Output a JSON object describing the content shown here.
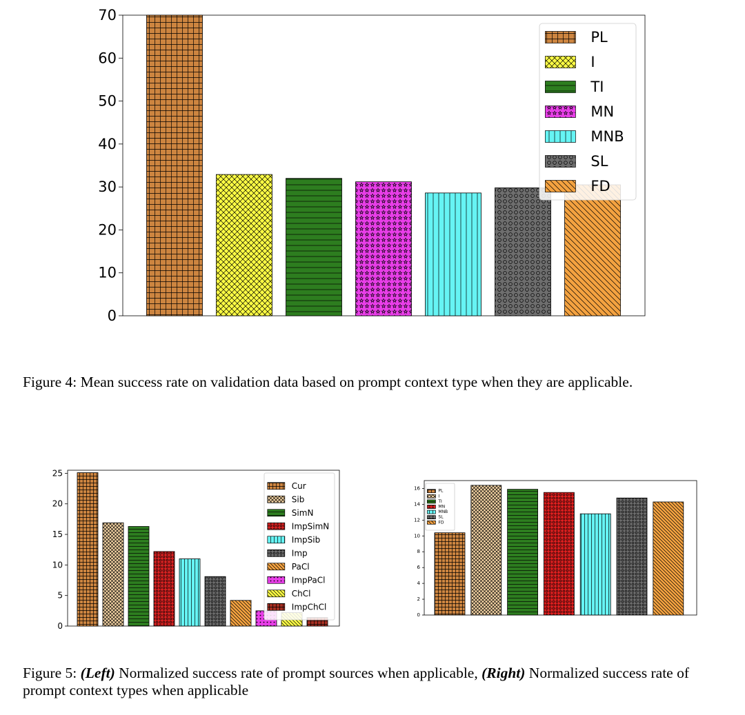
{
  "figure4": {
    "caption": "Figure 4: Mean success rate on validation data based on prompt context type when they are applicable."
  },
  "figure5": {
    "caption_prefix": "Figure 5: ",
    "caption_left_tag": "(Left)",
    "caption_middle": " Normalized success rate of prompt sources when applicable, ",
    "caption_right_tag": "(Right)",
    "caption_suffix": " Normalized success rate of prompt context types when applicable"
  },
  "chart_data": [
    {
      "type": "bar",
      "title": "",
      "xlabel": "",
      "ylabel": "",
      "categories": [
        "PL",
        "I",
        "TI",
        "MN",
        "MNB",
        "SL",
        "FD"
      ],
      "values": [
        70,
        32.9,
        32.0,
        31.2,
        28.6,
        29.8,
        30.5
      ],
      "colors": [
        "#cd8540",
        "#ffff44",
        "#2d7d1f",
        "#e83ee8",
        "#66f4f4",
        "#6e6e6e",
        "#f4a240"
      ],
      "patterns": [
        "grid",
        "crosshatch",
        "horizontal",
        "stars",
        "vertical",
        "circles",
        "diagonal"
      ],
      "ylim": [
        0,
        70
      ],
      "yticks": [
        0,
        10,
        20,
        30,
        40,
        50,
        60,
        70
      ],
      "legend": [
        "PL",
        "I",
        "TI",
        "MN",
        "MNB",
        "SL",
        "FD"
      ],
      "legend_position": "top-right",
      "grid": false
    },
    {
      "type": "bar",
      "title": "",
      "xlabel": "",
      "ylabel": "",
      "categories": [
        "Cur",
        "Sib",
        "SimN",
        "ImpSimN",
        "ImpSib",
        "Imp",
        "PaCl",
        "ImpPaCl",
        "ChCl",
        "ImpChCl"
      ],
      "values": [
        25.1,
        16.9,
        16.3,
        12.2,
        11.0,
        8.1,
        4.2,
        2.5,
        2.2,
        1.4
      ],
      "colors": [
        "#cd8540",
        "#f4d3a3",
        "#2d7d1f",
        "#dd2222",
        "#66f4f4",
        "#6e6e6e",
        "#f4a240",
        "#e83ee8",
        "#ffff44",
        "#a62f22"
      ],
      "patterns": [
        "grid",
        "crosshatch",
        "horizontal",
        "circles",
        "vertical",
        "circles",
        "diagonal",
        "dots",
        "diagonal",
        "grid"
      ],
      "ylim": [
        0,
        25.5
      ],
      "yticks": [
        0,
        5,
        10,
        15,
        20,
        25
      ],
      "legend": [
        "Cur",
        "Sib",
        "SimN",
        "ImpSimN",
        "ImpSib",
        "Imp",
        "PaCl",
        "ImpPaCl",
        "ChCl",
        "ImpChCl"
      ],
      "legend_position": "top-right",
      "grid": false
    },
    {
      "type": "bar",
      "title": "",
      "xlabel": "",
      "ylabel": "",
      "categories": [
        "PL",
        "I",
        "TI",
        "MN",
        "MNB",
        "SL",
        "FD"
      ],
      "values": [
        10.4,
        16.4,
        15.9,
        15.5,
        12.8,
        14.8,
        14.3
      ],
      "colors": [
        "#cd8540",
        "#f4d3a3",
        "#2d7d1f",
        "#e52020",
        "#66f4f4",
        "#6e6e6e",
        "#f4a240"
      ],
      "patterns": [
        "grid",
        "crosshatch",
        "horizontal",
        "circles",
        "vertical",
        "circles",
        "diagonal"
      ],
      "ylim": [
        0,
        17
      ],
      "yticks": [
        0,
        2,
        4,
        6,
        8,
        10,
        12,
        14,
        16
      ],
      "legend": [
        "PL",
        "I",
        "TI",
        "MN",
        "MNB",
        "SL",
        "FD"
      ],
      "legend_position": "top-left",
      "grid": false
    }
  ]
}
